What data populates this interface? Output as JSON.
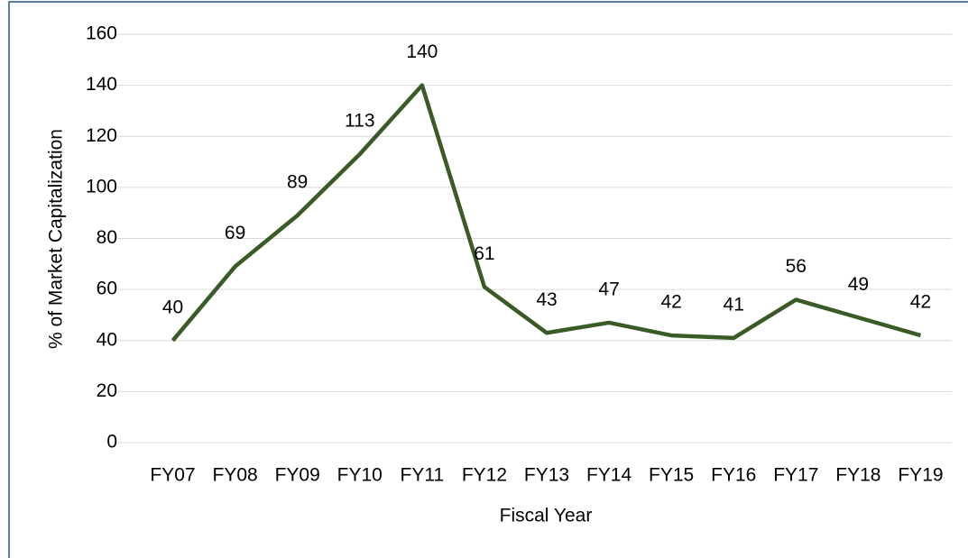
{
  "chart_data": {
    "type": "line",
    "x_label": "Fiscal Year",
    "y_label": "% of Market Capitalization",
    "categories": [
      "FY07",
      "FY08",
      "FY09",
      "FY10",
      "FY11",
      "FY12",
      "FY13",
      "FY14",
      "FY15",
      "FY16",
      "FY17",
      "FY18",
      "FY19"
    ],
    "values": [
      40,
      69,
      89,
      113,
      140,
      61,
      43,
      47,
      42,
      41,
      56,
      49,
      42
    ],
    "color": "#3a5a26",
    "ylim": [
      0,
      160
    ],
    "yticks": [
      0,
      20,
      40,
      60,
      80,
      100,
      120,
      140,
      160
    ],
    "grid": true
  }
}
